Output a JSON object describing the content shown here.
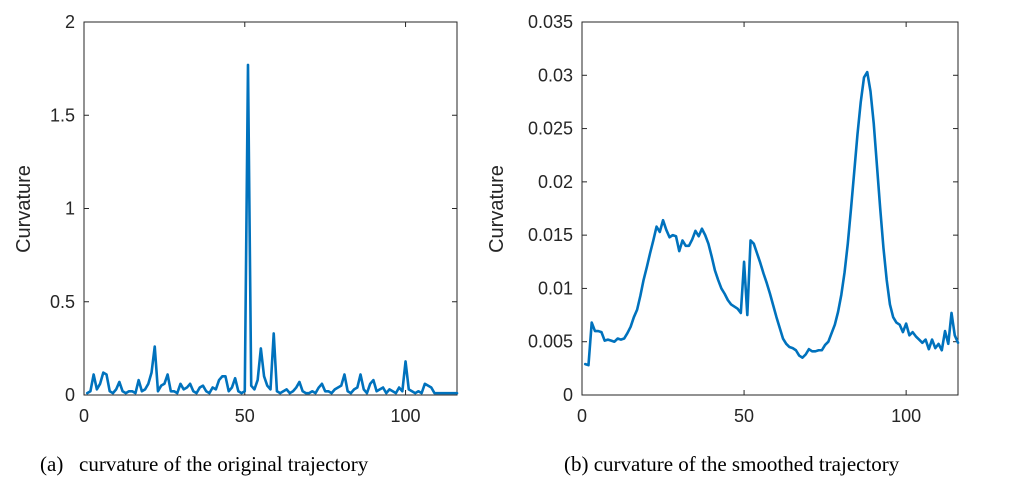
{
  "colors": {
    "line": "#0072BD",
    "axis": "#262626",
    "background": "#ffffff"
  },
  "chart_data": [
    {
      "type": "line",
      "caption": "(a)   curvature of the original trajectory",
      "xlabel": "",
      "ylabel": "Curvature",
      "xlim": [
        0,
        116
      ],
      "ylim": [
        0,
        2
      ],
      "xticks": [
        0,
        50,
        100
      ],
      "xtick_labels": [
        "0",
        "50",
        "100"
      ],
      "yticks": [
        0,
        0.5,
        1,
        1.5,
        2
      ],
      "ytick_labels": [
        "0",
        "0.5",
        "1",
        "1.5",
        "2"
      ],
      "series": [
        {
          "name": "curvature",
          "x": [
            1,
            2,
            3,
            4,
            5,
            6,
            7,
            8,
            9,
            10,
            11,
            12,
            13,
            14,
            15,
            16,
            17,
            18,
            19,
            20,
            21,
            22,
            23,
            24,
            25,
            26,
            27,
            28,
            29,
            30,
            31,
            32,
            33,
            34,
            35,
            36,
            37,
            38,
            39,
            40,
            41,
            42,
            43,
            44,
            45,
            46,
            47,
            48,
            49,
            50,
            51,
            52,
            53,
            54,
            55,
            56,
            57,
            58,
            59,
            60,
            61,
            62,
            63,
            64,
            65,
            66,
            67,
            68,
            69,
            70,
            71,
            72,
            73,
            74,
            75,
            76,
            77,
            78,
            79,
            80,
            81,
            82,
            83,
            84,
            85,
            86,
            87,
            88,
            89,
            90,
            91,
            92,
            93,
            94,
            95,
            96,
            97,
            98,
            99,
            100,
            101,
            102,
            103,
            104,
            105,
            106,
            107,
            108,
            109,
            110,
            111,
            112,
            113,
            114,
            115,
            116
          ],
          "values": [
            0.01,
            0.02,
            0.11,
            0.03,
            0.06,
            0.12,
            0.11,
            0.02,
            0.01,
            0.03,
            0.07,
            0.02,
            0.01,
            0.02,
            0.02,
            0.01,
            0.08,
            0.02,
            0.03,
            0.06,
            0.12,
            0.26,
            0.02,
            0.05,
            0.06,
            0.11,
            0.02,
            0.02,
            0.01,
            0.06,
            0.03,
            0.04,
            0.06,
            0.02,
            0.01,
            0.04,
            0.05,
            0.02,
            0.01,
            0.04,
            0.03,
            0.08,
            0.1,
            0.1,
            0.02,
            0.04,
            0.09,
            0.02,
            0.01,
            0.02,
            1.77,
            0.05,
            0.03,
            0.08,
            0.25,
            0.1,
            0.05,
            0.03,
            0.33,
            0.02,
            0.01,
            0.02,
            0.03,
            0.01,
            0.02,
            0.04,
            0.07,
            0.02,
            0.01,
            0.01,
            0.02,
            0.01,
            0.04,
            0.06,
            0.02,
            0.02,
            0.01,
            0.03,
            0.04,
            0.05,
            0.11,
            0.02,
            0.01,
            0.03,
            0.04,
            0.11,
            0.03,
            0.01,
            0.06,
            0.08,
            0.02,
            0.03,
            0.04,
            0.01,
            0.03,
            0.02,
            0.01,
            0.04,
            0.02,
            0.18,
            0.03,
            0.02,
            0.01,
            0.02,
            0.01,
            0.06,
            0.05,
            0.04,
            0.01,
            0.01,
            0.01,
            0.01,
            0.01,
            0.01,
            0.01,
            0.01
          ]
        }
      ]
    },
    {
      "type": "line",
      "caption": "(b) curvature of the smoothed trajectory",
      "xlabel": "",
      "ylabel": "Curvature",
      "xlim": [
        0,
        116
      ],
      "ylim": [
        0,
        0.035
      ],
      "xticks": [
        0,
        50,
        100
      ],
      "xtick_labels": [
        "0",
        "50",
        "100"
      ],
      "yticks": [
        0,
        0.005,
        0.01,
        0.015,
        0.02,
        0.025,
        0.03,
        0.035
      ],
      "ytick_labels": [
        "0",
        "0.005",
        "0.01",
        "0.015",
        "0.02",
        "0.025",
        "0.03",
        "0.035"
      ],
      "series": [
        {
          "name": "curvature",
          "x": [
            1,
            2,
            3,
            4,
            5,
            6,
            7,
            8,
            9,
            10,
            11,
            12,
            13,
            14,
            15,
            16,
            17,
            18,
            19,
            20,
            21,
            22,
            23,
            24,
            25,
            26,
            27,
            28,
            29,
            30,
            31,
            32,
            33,
            34,
            35,
            36,
            37,
            38,
            39,
            40,
            41,
            42,
            43,
            44,
            45,
            46,
            47,
            48,
            49,
            50,
            51,
            52,
            53,
            54,
            55,
            56,
            57,
            58,
            59,
            60,
            61,
            62,
            63,
            64,
            65,
            66,
            67,
            68,
            69,
            70,
            71,
            72,
            73,
            74,
            75,
            76,
            77,
            78,
            79,
            80,
            81,
            82,
            83,
            84,
            85,
            86,
            87,
            88,
            89,
            90,
            91,
            92,
            93,
            94,
            95,
            96,
            97,
            98,
            99,
            100,
            101,
            102,
            103,
            104,
            105,
            106,
            107,
            108,
            109,
            110,
            111,
            112,
            113,
            114,
            115,
            116
          ],
          "values": [
            0.0029,
            0.0028,
            0.0068,
            0.006,
            0.006,
            0.0059,
            0.0051,
            0.0052,
            0.0051,
            0.005,
            0.0053,
            0.0052,
            0.0053,
            0.0058,
            0.0064,
            0.0073,
            0.008,
            0.0093,
            0.0108,
            0.012,
            0.0133,
            0.0145,
            0.0158,
            0.0153,
            0.0164,
            0.0155,
            0.0148,
            0.015,
            0.0149,
            0.0135,
            0.0145,
            0.014,
            0.014,
            0.0146,
            0.0154,
            0.0149,
            0.0156,
            0.015,
            0.0142,
            0.013,
            0.0117,
            0.0108,
            0.01,
            0.0095,
            0.0089,
            0.0085,
            0.0083,
            0.0081,
            0.0077,
            0.0125,
            0.0075,
            0.0145,
            0.0142,
            0.0133,
            0.0124,
            0.0114,
            0.0105,
            0.0095,
            0.0084,
            0.0073,
            0.0063,
            0.0053,
            0.0048,
            0.0045,
            0.0044,
            0.0042,
            0.0037,
            0.0035,
            0.0038,
            0.0043,
            0.0041,
            0.0041,
            0.0042,
            0.0042,
            0.0047,
            0.005,
            0.0058,
            0.0066,
            0.0078,
            0.0094,
            0.0115,
            0.0142,
            0.0175,
            0.021,
            0.0245,
            0.0275,
            0.0298,
            0.0303,
            0.0285,
            0.0255,
            0.0215,
            0.0175,
            0.0138,
            0.0108,
            0.0085,
            0.0073,
            0.0068,
            0.0066,
            0.0059,
            0.0067,
            0.0056,
            0.0059,
            0.0055,
            0.0052,
            0.0049,
            0.0052,
            0.0043,
            0.0052,
            0.0044,
            0.0048,
            0.0042,
            0.006,
            0.0048,
            0.0077,
            0.0056,
            0.0049
          ]
        }
      ]
    }
  ]
}
